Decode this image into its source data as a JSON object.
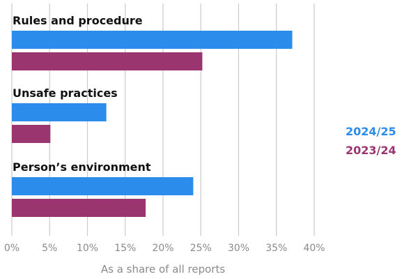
{
  "chart_data": {
    "type": "bar",
    "orientation": "horizontal",
    "title": "",
    "xlabel": "As a share of all reports",
    "ylabel": "",
    "xlim": [
      0,
      40
    ],
    "xticks": [
      0,
      5,
      10,
      15,
      20,
      25,
      30,
      35,
      40
    ],
    "tick_suffix": "%",
    "grid": true,
    "legend_position": "right",
    "categories": [
      "Rules and procedure",
      "Unsafe practices",
      "Person’s environment"
    ],
    "series": [
      {
        "name": "2024/25",
        "color": "#2b8ceb",
        "values": [
          37.1,
          12.5,
          24.0
        ]
      },
      {
        "name": "2023/24",
        "color": "#9b3570",
        "values": [
          25.2,
          5.1,
          17.7
        ]
      }
    ]
  }
}
